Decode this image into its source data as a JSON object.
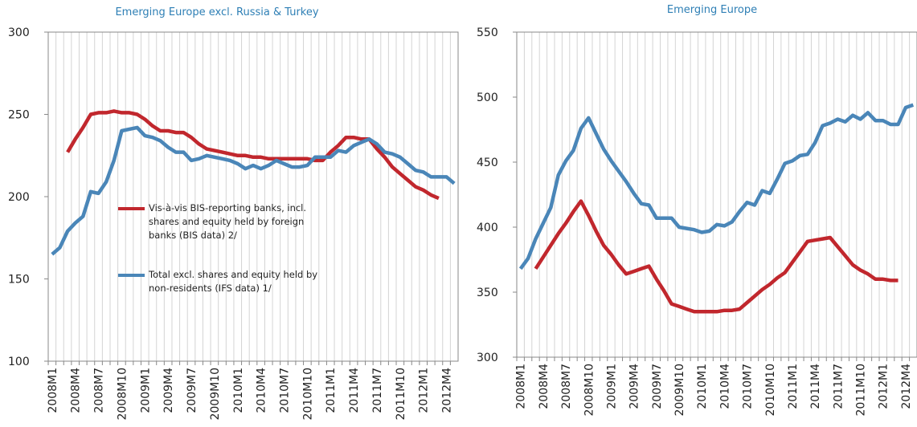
{
  "chart_data": [
    {
      "type": "line",
      "title": "Emerging   Europe excl. Russia & Turkey",
      "categories": [
        "2008M1",
        null,
        null,
        "2008M4",
        null,
        null,
        "2008M7",
        null,
        null,
        "2008M10",
        null,
        null,
        "2009M1",
        null,
        null,
        "2009M4",
        null,
        null,
        "2009M7",
        null,
        null,
        "2009M10",
        null,
        null,
        "2010M1",
        null,
        null,
        "2010M4",
        null,
        null,
        "2010M7",
        null,
        null,
        "2010M10",
        null,
        null,
        "2011M1",
        null,
        null,
        "2011M4",
        null,
        null,
        "2011M7",
        null,
        null,
        "2011M10",
        null,
        null,
        "2012M1",
        null,
        null,
        "2012M4",
        null
      ],
      "series": [
        {
          "name": "Vis-à-vis BIS-reporting banks, incl. shares and equity held by foreign banks (BIS data) 2/",
          "color": "#c1272d",
          "values": [
            null,
            null,
            227,
            235,
            242,
            250,
            251,
            251,
            252,
            251,
            251,
            250,
            247,
            243,
            240,
            240,
            239,
            239,
            236,
            232,
            229,
            228,
            227,
            226,
            225,
            225,
            224,
            224,
            223,
            223,
            223,
            223,
            223,
            223,
            222,
            222,
            227,
            231,
            236,
            236,
            235,
            235,
            229,
            224,
            218,
            214,
            210,
            206,
            204,
            201,
            199,
            null,
            null
          ]
        },
        {
          "name": "Total excl. shares and equity held by non-residents (IFS data) 1/",
          "color": "#4a86b8",
          "values": [
            165,
            169,
            179,
            184,
            188,
            203,
            202,
            209,
            222,
            240,
            241,
            242,
            237,
            236,
            234,
            230,
            227,
            227,
            222,
            223,
            225,
            224,
            223,
            222,
            220,
            217,
            219,
            217,
            219,
            222,
            220,
            218,
            218,
            219,
            224,
            224,
            224,
            228,
            227,
            231,
            233,
            235,
            232,
            227,
            226,
            224,
            220,
            216,
            215,
            212,
            212,
            212,
            208
          ]
        }
      ],
      "ylim": [
        100,
        300
      ],
      "yticks": [
        100,
        150,
        200,
        250,
        300
      ],
      "grid": true
    },
    {
      "type": "line",
      "title": "Emerging Europe",
      "categories": [
        "2008M1",
        null,
        null,
        "2008M4",
        null,
        null,
        "2008M7",
        null,
        null,
        "2008M10",
        null,
        null,
        "2009M1",
        null,
        null,
        "2009M4",
        null,
        null,
        "2009M7",
        null,
        null,
        "2009M10",
        null,
        null,
        "2010M1",
        null,
        null,
        "2010M4",
        null,
        null,
        "2010M7",
        null,
        null,
        "2010M10",
        null,
        null,
        "2011M1",
        null,
        null,
        "2011M4",
        null,
        null,
        "2011M7",
        null,
        null,
        "2011M10",
        null,
        null,
        "2012M1",
        null,
        null,
        "2012M4",
        null
      ],
      "series": [
        {
          "color": "#c1272d",
          "values": [
            null,
            null,
            368,
            377,
            386,
            395,
            403,
            412,
            420,
            409,
            397,
            386,
            379,
            371,
            364,
            366,
            368,
            370,
            360,
            351,
            341,
            339,
            337,
            335,
            335,
            335,
            335,
            336,
            336,
            337,
            342,
            347,
            352,
            356,
            361,
            365,
            373,
            381,
            389,
            390,
            391,
            392,
            385,
            378,
            371,
            367,
            364,
            360,
            360,
            359,
            359,
            null,
            null
          ]
        },
        {
          "color": "#4a86b8",
          "values": [
            368,
            376,
            391,
            403,
            415,
            440,
            451,
            459,
            476,
            484,
            472,
            460,
            451,
            443,
            435,
            426,
            418,
            417,
            407,
            407,
            407,
            400,
            399,
            398,
            396,
            397,
            402,
            401,
            404,
            412,
            419,
            417,
            428,
            426,
            437,
            449,
            451,
            455,
            456,
            465,
            478,
            480,
            483,
            481,
            486,
            483,
            488,
            482,
            482,
            479,
            479,
            492,
            494
          ]
        }
      ],
      "ylim": [
        300,
        550
      ],
      "yticks": [
        300,
        350,
        400,
        450,
        500,
        550
      ],
      "grid": true
    }
  ]
}
